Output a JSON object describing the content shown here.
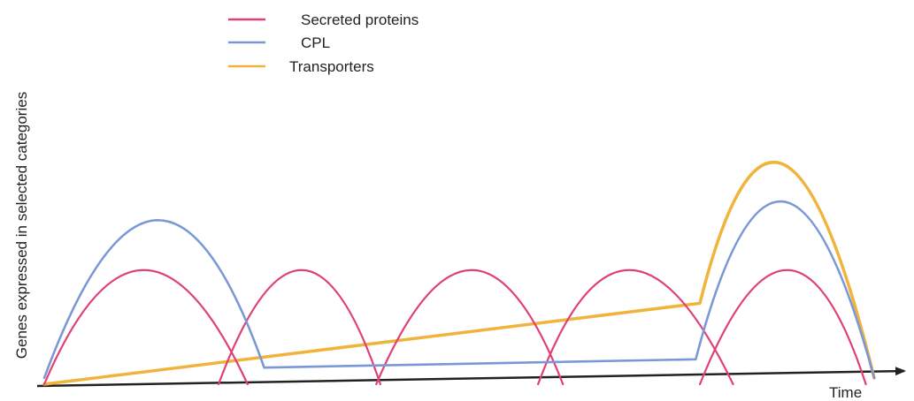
{
  "chart_data": {
    "type": "line",
    "xlabel": "Time",
    "ylabel": "Genes expressed in selected categories",
    "legend_placement": "top-left",
    "grid": false,
    "xlim": [
      0,
      100
    ],
    "ylim": [
      0,
      100
    ],
    "series": [
      {
        "name": "Secreted proteins",
        "color": "#e0407a",
        "curves": [
          {
            "x": [
              0,
              12,
              24.5
            ],
            "y": [
              0,
              55,
              0
            ]
          },
          {
            "x": [
              21,
              31,
              40.5
            ],
            "y": [
              0,
              55,
              0
            ]
          },
          {
            "x": [
              40,
              51.5,
              62.5
            ],
            "y": [
              0,
              55,
              0
            ]
          },
          {
            "x": [
              59.5,
              70.5,
              83
            ],
            "y": [
              0,
              55,
              0
            ]
          },
          {
            "x": [
              79,
              89.5,
              99
            ],
            "y": [
              0,
              55,
              0
            ]
          }
        ]
      },
      {
        "name": "CPL",
        "color": "#7b98d6",
        "x": [
          0,
          13.5,
          26.5,
          78.5,
          89,
          100
        ],
        "y": [
          3,
          79,
          8,
          12,
          88,
          3
        ]
      },
      {
        "name": "Transporters",
        "color": "#f0b43c",
        "x": [
          0,
          79,
          89,
          100
        ],
        "y": [
          0,
          39,
          106,
          3
        ]
      }
    ]
  }
}
